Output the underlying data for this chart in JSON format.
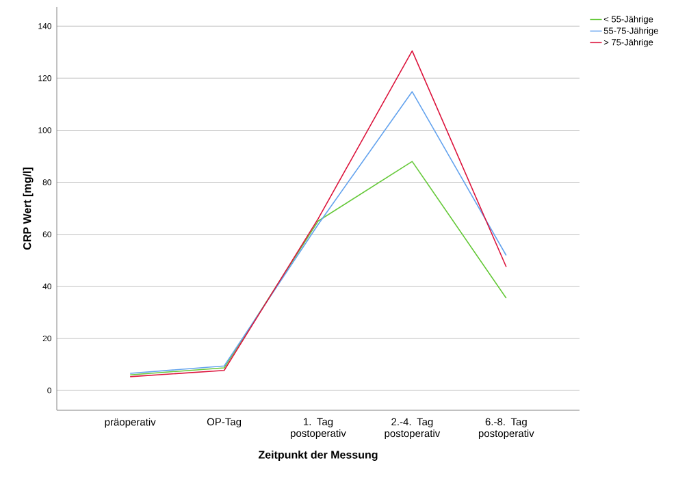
{
  "chart_data": {
    "type": "line",
    "xlabel": "Zeitpunkt der Messung",
    "ylabel": "CRP Wert [mg/l]",
    "categories": [
      "präoperativ",
      "OP-Tag",
      "1. Tag postoperativ",
      "2.-4. Tag postoperativ",
      "6.-8. Tag postoperativ"
    ],
    "series": [
      {
        "name": "< 55-Jährige",
        "color": "#66c93a",
        "values": [
          6.0,
          8.7,
          65.1,
          88,
          35.5
        ]
      },
      {
        "name": "55-75-Jährige",
        "color": "#64a3ee",
        "values": [
          6.6,
          9.4,
          63.8,
          114.8,
          51.9
        ]
      },
      {
        "name": "> 75-Jährige",
        "color": "#dc143c",
        "values": [
          5.3,
          7.7,
          66,
          130.5,
          47.5
        ]
      }
    ],
    "ylim": [
      -7.6,
      147.4
    ],
    "yticks": [
      0,
      20,
      40,
      60,
      80,
      100,
      120,
      140
    ],
    "grid": "y",
    "legend": "top right"
  }
}
